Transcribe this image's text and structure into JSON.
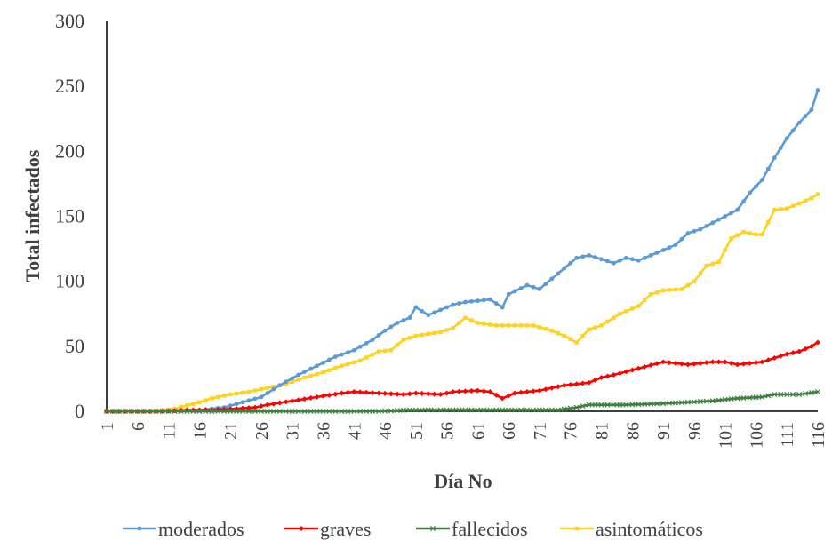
{
  "chart_data": {
    "type": "line",
    "title": "",
    "xlabel": "Día No",
    "ylabel": "Total infectados",
    "ylim": [
      0,
      300
    ],
    "yticks": [
      0,
      50,
      100,
      150,
      200,
      250,
      300
    ],
    "xlim": [
      1,
      116
    ],
    "xticks": [
      1,
      6,
      11,
      16,
      21,
      26,
      31,
      36,
      41,
      46,
      51,
      56,
      61,
      66,
      71,
      76,
      81,
      86,
      91,
      96,
      101,
      106,
      111,
      116
    ],
    "grid": false,
    "legend_position": "bottom",
    "series": [
      {
        "name": "moderados",
        "color": "#5b9bd5",
        "marker": "circle",
        "points": [
          [
            1,
            0
          ],
          [
            10,
            0
          ],
          [
            16,
            1
          ],
          [
            20,
            3
          ],
          [
            23,
            7
          ],
          [
            26,
            11
          ],
          [
            29,
            20
          ],
          [
            32,
            28
          ],
          [
            35,
            35
          ],
          [
            38,
            42
          ],
          [
            41,
            47
          ],
          [
            44,
            55
          ],
          [
            46,
            62
          ],
          [
            48,
            68
          ],
          [
            50,
            72
          ],
          [
            51,
            80
          ],
          [
            53,
            74
          ],
          [
            55,
            78
          ],
          [
            57,
            82
          ],
          [
            59,
            84
          ],
          [
            61,
            85
          ],
          [
            63,
            86
          ],
          [
            65,
            80
          ],
          [
            66,
            90
          ],
          [
            69,
            97
          ],
          [
            71,
            94
          ],
          [
            73,
            102
          ],
          [
            75,
            110
          ],
          [
            77,
            118
          ],
          [
            79,
            120
          ],
          [
            81,
            117
          ],
          [
            83,
            114
          ],
          [
            85,
            118
          ],
          [
            87,
            116
          ],
          [
            89,
            120
          ],
          [
            91,
            124
          ],
          [
            93,
            128
          ],
          [
            95,
            137
          ],
          [
            97,
            140
          ],
          [
            99,
            145
          ],
          [
            101,
            150
          ],
          [
            103,
            155
          ],
          [
            105,
            168
          ],
          [
            107,
            178
          ],
          [
            109,
            195
          ],
          [
            111,
            210
          ],
          [
            113,
            222
          ],
          [
            115,
            232
          ],
          [
            116,
            247
          ]
        ]
      },
      {
        "name": "graves",
        "color": "#ff0000",
        "marker": "diamond",
        "points": [
          [
            1,
            0
          ],
          [
            10,
            0
          ],
          [
            14,
            1
          ],
          [
            18,
            1
          ],
          [
            22,
            2
          ],
          [
            25,
            3
          ],
          [
            27,
            5
          ],
          [
            31,
            8
          ],
          [
            35,
            11
          ],
          [
            39,
            14
          ],
          [
            41,
            15
          ],
          [
            45,
            14
          ],
          [
            49,
            13
          ],
          [
            51,
            14
          ],
          [
            55,
            13
          ],
          [
            57,
            15
          ],
          [
            61,
            16
          ],
          [
            63,
            15
          ],
          [
            65,
            10
          ],
          [
            67,
            14
          ],
          [
            71,
            16
          ],
          [
            75,
            20
          ],
          [
            79,
            22
          ],
          [
            81,
            26
          ],
          [
            83,
            28
          ],
          [
            87,
            33
          ],
          [
            91,
            38
          ],
          [
            93,
            37
          ],
          [
            95,
            36
          ],
          [
            99,
            38
          ],
          [
            101,
            38
          ],
          [
            103,
            36
          ],
          [
            107,
            38
          ],
          [
            109,
            41
          ],
          [
            111,
            44
          ],
          [
            113,
            46
          ],
          [
            115,
            50
          ],
          [
            116,
            53
          ]
        ]
      },
      {
        "name": "fallecidos",
        "color": "#3f7f3f",
        "marker": "x",
        "points": [
          [
            1,
            0
          ],
          [
            45,
            0
          ],
          [
            50,
            1
          ],
          [
            55,
            1
          ],
          [
            60,
            1
          ],
          [
            65,
            1
          ],
          [
            70,
            1
          ],
          [
            74,
            1
          ],
          [
            77,
            3
          ],
          [
            79,
            5
          ],
          [
            85,
            5
          ],
          [
            91,
            6
          ],
          [
            95,
            7
          ],
          [
            99,
            8
          ],
          [
            103,
            10
          ],
          [
            107,
            11
          ],
          [
            109,
            13
          ],
          [
            113,
            13
          ],
          [
            116,
            15
          ]
        ]
      },
      {
        "name": "asintomáticos",
        "color": "#ffd21f",
        "marker": "square",
        "points": [
          [
            1,
            0
          ],
          [
            8,
            0
          ],
          [
            12,
            2
          ],
          [
            16,
            7
          ],
          [
            18,
            10
          ],
          [
            21,
            13
          ],
          [
            24,
            15
          ],
          [
            27,
            18
          ],
          [
            30,
            21
          ],
          [
            33,
            26
          ],
          [
            36,
            30
          ],
          [
            39,
            35
          ],
          [
            42,
            39
          ],
          [
            45,
            46
          ],
          [
            47,
            47
          ],
          [
            49,
            55
          ],
          [
            51,
            58
          ],
          [
            55,
            61
          ],
          [
            57,
            64
          ],
          [
            59,
            72
          ],
          [
            61,
            68
          ],
          [
            64,
            66
          ],
          [
            67,
            66
          ],
          [
            70,
            66
          ],
          [
            73,
            62
          ],
          [
            75,
            58
          ],
          [
            77,
            53
          ],
          [
            79,
            63
          ],
          [
            81,
            66
          ],
          [
            84,
            75
          ],
          [
            87,
            81
          ],
          [
            89,
            90
          ],
          [
            91,
            93
          ],
          [
            94,
            94
          ],
          [
            96,
            100
          ],
          [
            98,
            112
          ],
          [
            100,
            115
          ],
          [
            102,
            133
          ],
          [
            104,
            138
          ],
          [
            106,
            136
          ],
          [
            107,
            136
          ],
          [
            109,
            155
          ],
          [
            111,
            156
          ],
          [
            113,
            160
          ],
          [
            115,
            164
          ],
          [
            116,
            167
          ]
        ]
      }
    ]
  }
}
